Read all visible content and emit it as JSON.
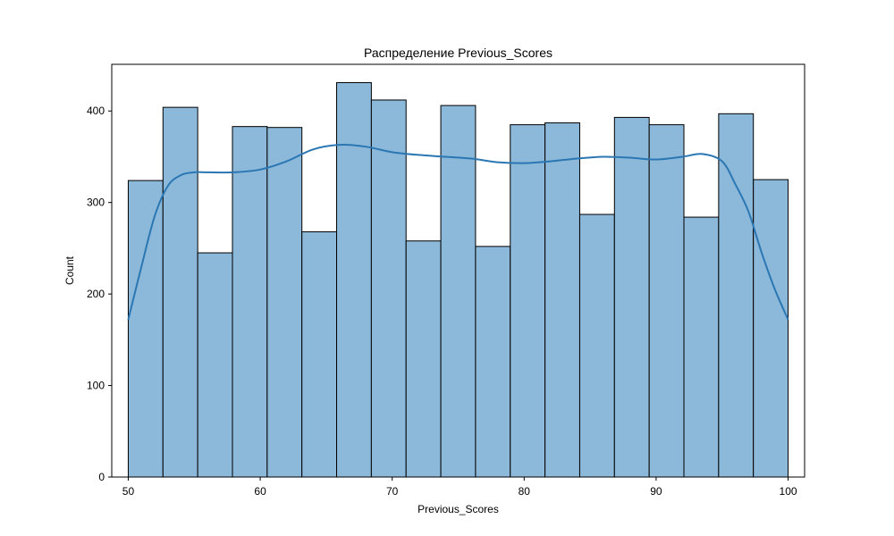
{
  "chart_data": {
    "type": "bar",
    "title": "Распределение Previous_Scores",
    "xlabel": "Previous_Scores",
    "ylabel": "Count",
    "xlim": [
      48.75,
      101.25
    ],
    "ylim": [
      0,
      451
    ],
    "xticks": [
      50,
      60,
      70,
      80,
      90,
      100
    ],
    "yticks": [
      0,
      100,
      200,
      300,
      400
    ],
    "bin_edges": [
      50,
      52.6316,
      55.2632,
      57.8947,
      60.5263,
      63.1579,
      65.7895,
      68.4211,
      71.0526,
      73.6842,
      76.3158,
      78.9474,
      81.5789,
      84.2105,
      86.8421,
      89.4737,
      92.1053,
      94.7368,
      97.3684,
      100
    ],
    "values": [
      324,
      404,
      245,
      383,
      382,
      268,
      431,
      412,
      258,
      406,
      252,
      385,
      387,
      287,
      393,
      385,
      284,
      397,
      325
    ],
    "kde": {
      "x": [
        50,
        51,
        52,
        53,
        54,
        55,
        56,
        58,
        60,
        62,
        64,
        66,
        68,
        70,
        72,
        74,
        76,
        78,
        80,
        82,
        84,
        86,
        88,
        90,
        92,
        93.5,
        95,
        96,
        97,
        98,
        99,
        100
      ],
      "y": [
        172,
        230,
        285,
        318,
        330,
        333,
        333,
        333,
        336,
        345,
        358,
        363,
        361,
        355,
        352,
        350,
        348,
        344,
        343,
        345,
        348,
        350,
        349,
        347,
        350,
        353,
        345,
        320,
        290,
        245,
        205,
        172
      ]
    },
    "grid": false,
    "bar_color": "#8cb8d9",
    "bar_edge_color": "#000000",
    "line_color": "#2a77b4"
  }
}
